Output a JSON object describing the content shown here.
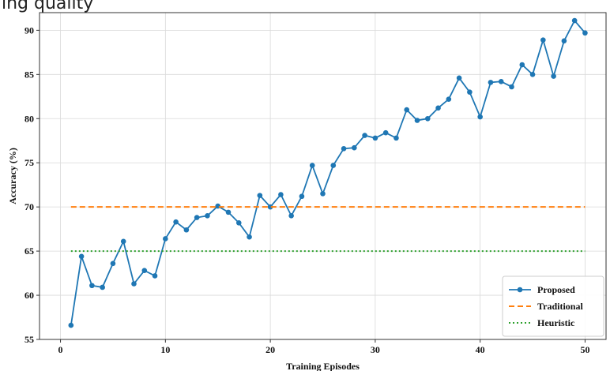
{
  "header": {
    "cropped_text": "ing quality"
  },
  "colors": {
    "proposed": "#1f77b4",
    "traditional": "#ff7f0e",
    "heuristic": "#2ca02c",
    "grid": "#d9d9d9",
    "axis": "#333333"
  },
  "chart_data": {
    "type": "line",
    "title": "",
    "xlabel": "Training Episodes",
    "ylabel": "Accuracy (%)",
    "xlim": [
      -2,
      52
    ],
    "ylim": [
      55,
      92
    ],
    "x_ticks": [
      "0",
      "10",
      "20",
      "30",
      "40",
      "50"
    ],
    "y_ticks": [
      "55",
      "60",
      "65",
      "70",
      "75",
      "80",
      "85",
      "90"
    ],
    "grid": true,
    "legend_position": "lower-right",
    "series": [
      {
        "name": "Proposed",
        "style": "solid-with-markers",
        "x": [
          1,
          2,
          3,
          4,
          5,
          6,
          7,
          8,
          9,
          10,
          11,
          12,
          13,
          14,
          15,
          16,
          17,
          18,
          19,
          20,
          21,
          22,
          23,
          24,
          25,
          26,
          27,
          28,
          29,
          30,
          31,
          32,
          33,
          34,
          35,
          36,
          37,
          38,
          39,
          40,
          41,
          42,
          43,
          44,
          45,
          46,
          47,
          48,
          49,
          50
        ],
        "y": [
          56.6,
          64.4,
          61.1,
          60.9,
          63.6,
          66.1,
          61.3,
          62.8,
          62.2,
          66.4,
          68.3,
          67.4,
          68.8,
          69.0,
          70.1,
          69.4,
          68.2,
          66.6,
          71.3,
          70.0,
          71.4,
          69.0,
          71.2,
          74.7,
          71.5,
          74.7,
          76.6,
          76.7,
          78.1,
          77.8,
          78.4,
          77.8,
          81.0,
          79.8,
          80.0,
          81.2,
          82.2,
          84.6,
          83.0,
          80.2,
          84.1,
          84.2,
          83.6,
          86.1,
          85.0,
          88.9,
          84.8,
          88.8,
          91.1,
          89.7
        ]
      },
      {
        "name": "Traditional",
        "style": "dashed",
        "x": [
          1,
          50
        ],
        "y": [
          70.0,
          70.0
        ]
      },
      {
        "name": "Heuristic",
        "style": "dotted",
        "x": [
          1,
          50
        ],
        "y": [
          65.0,
          65.0
        ]
      }
    ]
  }
}
